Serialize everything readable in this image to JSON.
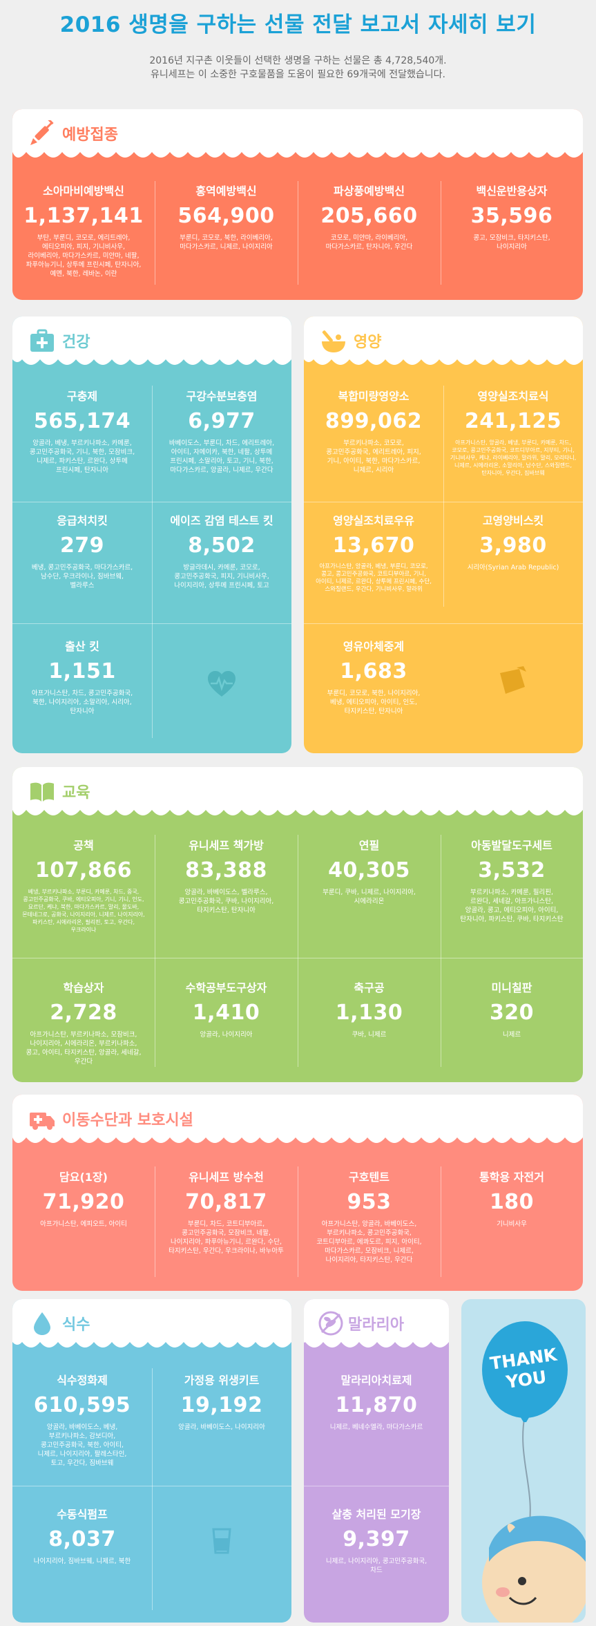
{
  "title": "2016 생명을 구하는 선물 전달 보고서 자세히 보기",
  "intro": {
    "line1": "2016년 지구촌 이웃들이 선택한 생명을 구하는 선물은 총 4,728,540개.",
    "line2": "유니세프는 이 소중한 구호물품을 도움이 필요한 69개국에 전달했습니다."
  },
  "colors": {
    "vaccine": "#ff7e5f",
    "health": "#6ecbd2",
    "nutrition": "#ffc54d",
    "education": "#a4cf6c",
    "transport": "#ff8c7e",
    "water": "#72c8e0",
    "malaria": "#c8a5e2",
    "title": "#1ba1d6"
  },
  "sections": {
    "vaccine": {
      "title": "예방접종",
      "icon": "syringe-icon",
      "items": [
        {
          "name": "소아마비예방백신",
          "count": "1,137,141",
          "countries": "부탄, 부룬디, 코모로, 에리트레아, 에티오피아, 피지, 기니비사우, 라이베리아, 마다가스카르, 미얀마, 네팔, 파푸아뉴기니, 상투메 프린시페, 탄자니아, 예멘, 북한, 레바논, 이란"
        },
        {
          "name": "홍역예방백신",
          "count": "564,900",
          "countries": "부룬디, 코모로, 북한, 라이베리아, 마다가스카르, 니제르, 나이지리아"
        },
        {
          "name": "파상풍예방백신",
          "count": "205,660",
          "countries": "코모로, 미얀마, 라이베리아, 마다가스카르, 탄자니아, 우간다"
        },
        {
          "name": "백신운반용상자",
          "count": "35,596",
          "countries": "콩고, 모잠비크, 타지키스탄, 나이지리아"
        }
      ]
    },
    "health": {
      "title": "건강",
      "icon": "medical-kit-icon",
      "items": [
        {
          "name": "구충제",
          "count": "565,174",
          "countries": "앙골라, 베냉, 부르키나파소, 카메룬, 콩고민주공화국, 기니, 북한, 모잠비크, 니제르, 파키스탄, 르완다, 상투메 프린시페, 탄자니아"
        },
        {
          "name": "구강수분보충염",
          "count": "6,977",
          "countries": "바베이도스, 부룬디, 차드, 에리트레아, 아이티, 자메이카, 북한, 네팔, 상투메 프린시페, 소말리아, 토고, 기니, 북한, 마다가스카르, 앙골라, 니제르, 우간다"
        },
        {
          "name": "응급처치킷",
          "count": "279",
          "countries": "베냉, 콩고민주공화국, 마다가스카르, 남수단, 우크라이나, 짐바브웨, 벨라루스"
        },
        {
          "name": "에이즈 감염 테스트 킷",
          "count": "8,502",
          "countries": "방글라데시, 카메룬, 코모로, 콩고민주공화국, 피지, 기니비사우, 나이지리아, 상투메 프린시페, 토고"
        },
        {
          "name": "출산 킷",
          "count": "1,151",
          "countries": "아프가니스탄, 차드, 콩고민주공화국, 북한, 나이지리아, 소말리아, 시리아, 탄자니아"
        }
      ]
    },
    "nutrition": {
      "title": "영양",
      "icon": "bowl-icon",
      "items": [
        {
          "name": "복합미량영양소",
          "count": "899,062",
          "countries": "부르키나파소, 코모로, 콩고민주공화국, 에리트레아, 피지, 기니, 아이티, 북한, 마다가스카르, 니제르, 시리아"
        },
        {
          "name": "영양실조치료식",
          "count": "241,125",
          "countries": "아프가니스탄, 앙골라, 베냉, 부룬디, 카메룬, 차드, 코모로, 콩고민주공화국, 코트디부아르, 지부티, 기니, 기니비사우, 케냐, 라이베리아, 말라위, 말리, 모리타니, 니제르, 시에라리온, 소말리아, 남수단, 스와질랜드, 탄자니아, 우간다, 짐바브웨"
        },
        {
          "name": "영양실조치료우유",
          "count": "13,670",
          "countries": "아프가니스탄, 앙골라, 베냉, 부룬디, 코모로, 콩고, 콩고민주공화국, 코트디부아르, 기니, 아이티, 니제르, 르완다, 상투메 프린시페, 수단, 스와질랜드, 우간다, 기니비사우, 말라위"
        },
        {
          "name": "고영양비스킷",
          "count": "3,980",
          "countries": "시리아(Syrian Arab Republic)"
        },
        {
          "name": "영유아체중계",
          "count": "1,683",
          "countries": "부룬디, 코모로, 북한, 나이지리아, 베냉, 에티오피아, 아이티, 인도, 타지키스탄, 탄자니아"
        }
      ]
    },
    "education": {
      "title": "교육",
      "icon": "book-icon",
      "items": [
        {
          "name": "공책",
          "count": "107,866",
          "countries": "베냉, 부르키나파소, 부룬디, 카메룬, 차드, 중국, 콩고민주공화국, 쿠바, 에티오피아, 기니, 기니, 인도, 요르단, 케냐, 북한, 마다가스카르, 말리, 몰도바, 몬테네그로, 공화국, 나이지리아, 니제르, 나이지리아, 파키스탄, 시에라리온, 필리핀, 토고, 우간다, 우크라이나"
        },
        {
          "name": "유니세프 책가방",
          "count": "83,388",
          "countries": "앙골라, 바베이도스, 벨라루스, 콩고민주공화국, 쿠바, 나이지리아, 타지키스탄, 탄자니아"
        },
        {
          "name": "연필",
          "count": "40,305",
          "countries": "부룬디, 쿠바, 니제르, 나이지리아, 시에라리온"
        },
        {
          "name": "아동발달도구세트",
          "count": "3,532",
          "countries": "부르키나파소, 카메룬, 필리핀, 르완다, 세네갈, 아프가니스탄, 앙골라, 콩고, 에티오피아, 아이티, 탄자니아, 파키스탄, 쿠바, 타지키스탄"
        },
        {
          "name": "학습상자",
          "count": "2,728",
          "countries": "아프가니스탄, 부르키나파소, 모잠비크, 나이지리아, 시에라리온, 부르키나파소, 콩고, 아이티, 타지키스탄, 앙골라, 세네갈, 우간다"
        },
        {
          "name": "수학공부도구상자",
          "count": "1,410",
          "countries": "앙골라, 나이지리아"
        },
        {
          "name": "축구공",
          "count": "1,130",
          "countries": "쿠바, 니제르"
        },
        {
          "name": "미니칠판",
          "count": "320",
          "countries": "니제르"
        }
      ]
    },
    "transport": {
      "title": "이동수단과 보호시설",
      "icon": "ambulance-icon",
      "items": [
        {
          "name": "담요(1장)",
          "count": "71,920",
          "countries": "아프가니스탄, 에피오트, 아이티"
        },
        {
          "name": "유니세프 방수천",
          "count": "70,817",
          "countries": "부룬디, 차드, 코트디부아르, 콩고민주공화국, 모잠비크, 네팔, 나이지리아, 파푸아뉴기니, 르완다, 수단, 타지키스탄, 우간다, 우크라이나, 바누아투"
        },
        {
          "name": "구호텐트",
          "count": "953",
          "countries": "아프가니스탄, 앙골라, 바베이도스, 부르키나파소, 콩고민주공화국, 코트디부아르, 에콰도르, 피지, 아이티, 마다가스카르, 모잠비크, 니제르, 나이지리아, 타지키스탄, 우간다"
        },
        {
          "name": "통학용 자전거",
          "count": "180",
          "countries": "기니비사우"
        }
      ]
    },
    "water": {
      "title": "식수",
      "icon": "water-drop-icon",
      "items": [
        {
          "name": "식수정화제",
          "count": "610,595",
          "countries": "앙골라, 바베이도스, 베냉, 부르키나파소, 감보디아, 콩고민주공화국, 북한, 아이티, 니제르, 나이지리아, 팔레스타인, 토고, 우간다, 짐바브웨"
        },
        {
          "name": "가정용 위생키트",
          "count": "19,192",
          "countries": "앙골라, 바베이도스, 나이지리아"
        },
        {
          "name": "수동식펌프",
          "count": "8,037",
          "countries": "나이지리아, 짐바브웨, 니제르, 북한"
        }
      ]
    },
    "malaria": {
      "title": "말라리아",
      "icon": "mosquito-icon",
      "items": [
        {
          "name": "말라리아치료제",
          "count": "11,870",
          "countries": "니제르, 베네수엘라, 마다가스카르"
        },
        {
          "name": "살충 처리된 모기장",
          "count": "9,397",
          "countries": "니제르, 나이지리아, 콩고민주공화국, 차드"
        }
      ]
    }
  },
  "thanks": {
    "line1": "THANK",
    "line2": "YOU",
    "icon": "balloon-icon"
  }
}
